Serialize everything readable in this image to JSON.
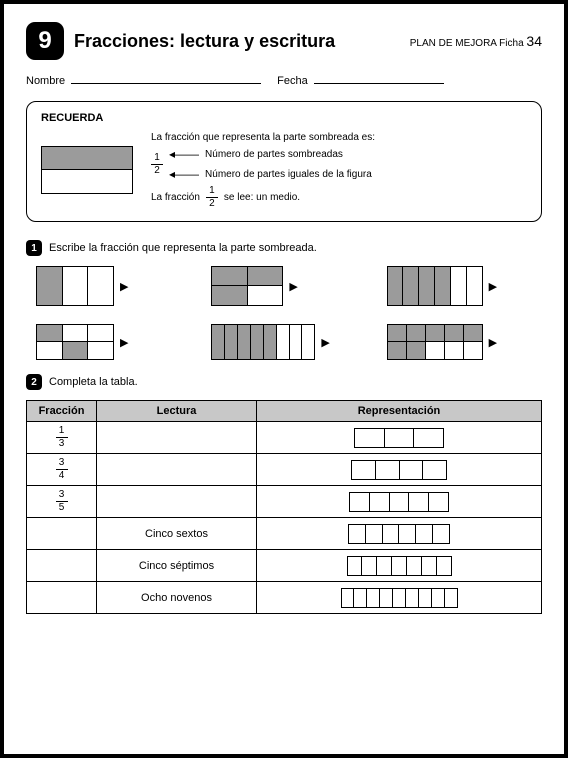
{
  "header": {
    "number": "9",
    "title": "Fracciones: lectura y escritura",
    "plan_label": "PLAN DE MEJORA  Ficha",
    "ficha_num": "34"
  },
  "fields": {
    "nombre": "Nombre",
    "fecha": "Fecha"
  },
  "recuerda": {
    "title": "RECUERDA",
    "line1": "La fracción que representa la parte sombreada es:",
    "num": "1",
    "den": "2",
    "num_text": "Número de partes sombreadas",
    "den_text": "Número de partes iguales de la figura",
    "read_prefix": "La fracción",
    "read_suffix": "se lee: un medio.",
    "shaded_color": "#9b9b9b"
  },
  "ex1": {
    "num": "1",
    "text": "Escribe la fracción que representa la parte sombreada.",
    "figs": [
      {
        "rows": 1,
        "cols": 3,
        "w": 78,
        "h": 40,
        "shaded": [
          [
            0,
            0
          ]
        ]
      },
      {
        "rows": 2,
        "cols": 2,
        "w": 72,
        "h": 40,
        "shaded": [
          [
            0,
            0
          ],
          [
            0,
            1
          ],
          [
            1,
            0
          ]
        ]
      },
      {
        "rows": 1,
        "cols": 6,
        "w": 96,
        "h": 40,
        "shaded": [
          [
            0,
            0
          ],
          [
            0,
            1
          ],
          [
            0,
            2
          ],
          [
            0,
            3
          ]
        ]
      },
      {
        "rows": 2,
        "cols": 3,
        "w": 78,
        "h": 36,
        "shaded": [
          [
            0,
            0
          ],
          [
            1,
            1
          ]
        ]
      },
      {
        "rows": 1,
        "cols": 8,
        "w": 104,
        "h": 36,
        "shaded": [
          [
            0,
            0
          ],
          [
            0,
            1
          ],
          [
            0,
            2
          ],
          [
            0,
            3
          ],
          [
            0,
            4
          ]
        ]
      },
      {
        "rows": 2,
        "cols": 5,
        "w": 96,
        "h": 36,
        "shaded": [
          [
            0,
            0
          ],
          [
            0,
            1
          ],
          [
            0,
            2
          ],
          [
            0,
            3
          ],
          [
            0,
            4
          ],
          [
            1,
            0
          ],
          [
            1,
            1
          ]
        ]
      }
    ]
  },
  "ex2": {
    "num": "2",
    "text": "Completa la tabla.",
    "headers": {
      "fraccion": "Fracción",
      "lectura": "Lectura",
      "rep": "Representación"
    },
    "rows": [
      {
        "num": "1",
        "den": "3",
        "lectura": "",
        "boxes": 3,
        "bw": 90,
        "bh": 20
      },
      {
        "num": "3",
        "den": "4",
        "lectura": "",
        "boxes": 4,
        "bw": 96,
        "bh": 20
      },
      {
        "num": "3",
        "den": "5",
        "lectura": "",
        "boxes": 5,
        "bw": 100,
        "bh": 20
      },
      {
        "num": "",
        "den": "",
        "lectura": "Cinco sextos",
        "boxes": 6,
        "bw": 102,
        "bh": 20
      },
      {
        "num": "",
        "den": "",
        "lectura": "Cinco séptimos",
        "boxes": 7,
        "bw": 105,
        "bh": 20
      },
      {
        "num": "",
        "den": "",
        "lectura": "Ocho novenos",
        "boxes": 9,
        "bw": 117,
        "bh": 20
      }
    ]
  },
  "colors": {
    "shaded": "#9b9b9b",
    "header_bg": "#c8c8c8",
    "border": "#000000"
  }
}
